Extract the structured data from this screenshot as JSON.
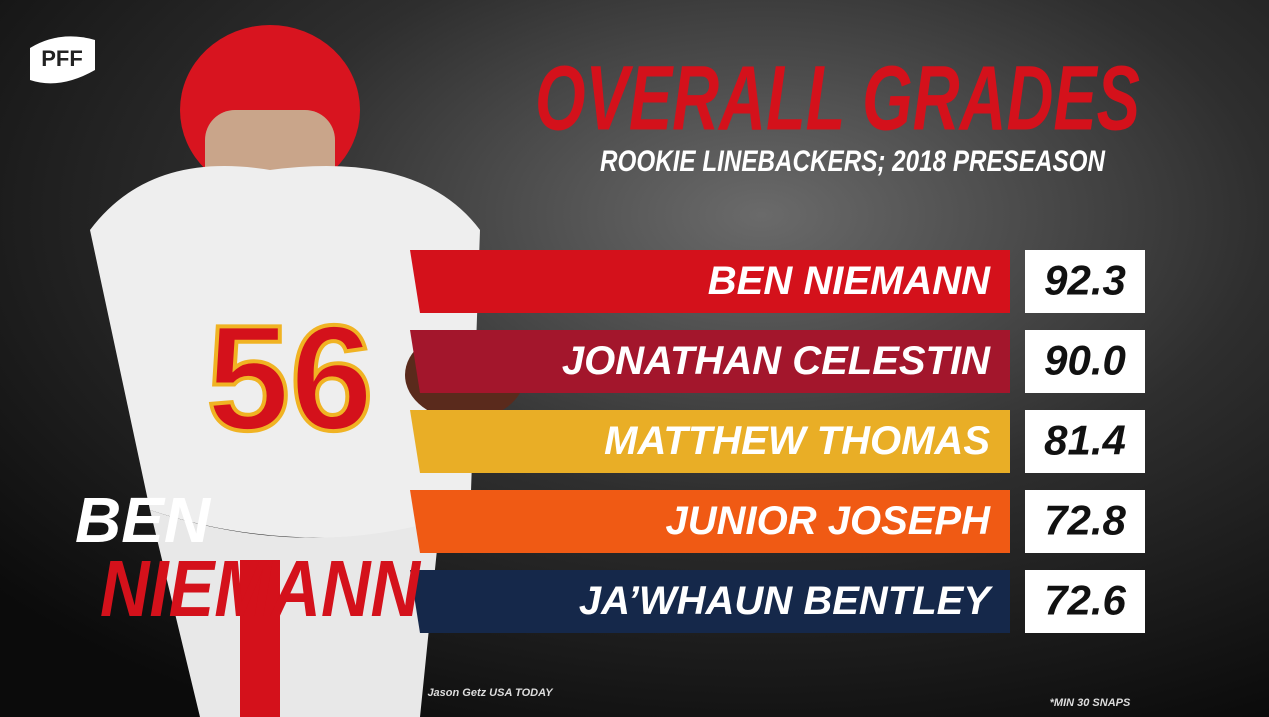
{
  "logo": "PFF",
  "header": {
    "title": "OVERALL GRADES",
    "subtitle": "ROOKIE LINEBACKERS; 2018 PRESEASON"
  },
  "rows": [
    {
      "name": "BEN NIEMANN",
      "grade": "92.3",
      "color": "#d4111b"
    },
    {
      "name": "JONATHAN CELESTIN",
      "grade": "90.0",
      "color": "#a3162c"
    },
    {
      "name": "MATTHEW THOMAS",
      "grade": "81.4",
      "color": "#e9ae26"
    },
    {
      "name": "JUNIOR JOSEPH",
      "grade": "72.8",
      "color": "#f05a14"
    },
    {
      "name": "JA’WHAUN BENTLEY",
      "grade": "72.6",
      "color": "#15284a"
    }
  ],
  "featured": {
    "first": "BEN",
    "last": "NIEMANN"
  },
  "credit": "Jason Getz USA TODAY",
  "footnote": "*MIN 30 SNAPS"
}
